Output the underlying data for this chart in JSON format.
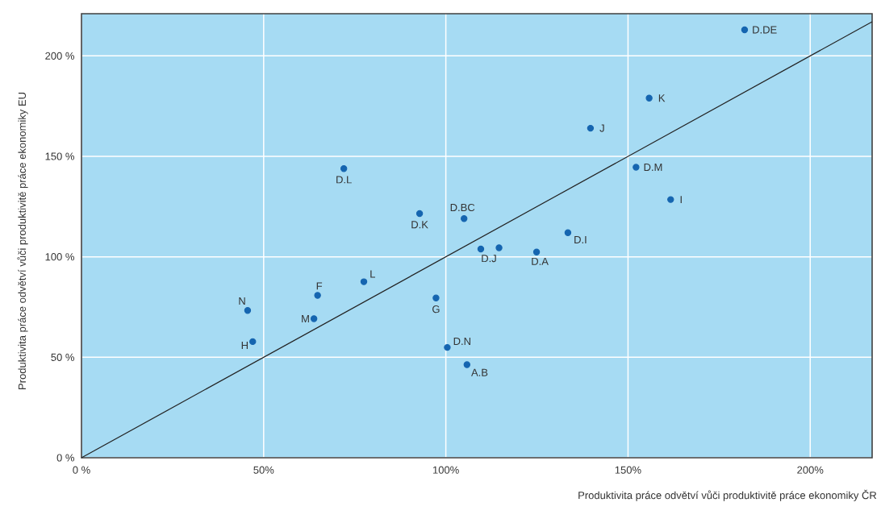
{
  "chart_data": {
    "type": "scatter",
    "xlabel": "Produktivita práce odvětví vůči produktivitě práce ekonomiky ČR",
    "ylabel": "Produktivita práce odvětví vůči produktivitě práce ekonomiky EU",
    "xlim": [
      0,
      217
    ],
    "ylim": [
      0,
      221
    ],
    "xticks": [
      {
        "value": 0,
        "label": "0 %"
      },
      {
        "value": 50,
        "label": "50%"
      },
      {
        "value": 100,
        "label": "100%"
      },
      {
        "value": 150,
        "label": "150%"
      },
      {
        "value": 200,
        "label": "200%"
      }
    ],
    "yticks": [
      {
        "value": 0,
        "label": "0 %"
      },
      {
        "value": 50,
        "label": "50 %"
      },
      {
        "value": 100,
        "label": "100 %"
      },
      {
        "value": 150,
        "label": "150 %"
      },
      {
        "value": 200,
        "label": "200 %"
      }
    ],
    "grid": true,
    "marker": "circle",
    "series": [
      {
        "color": "#1565b0",
        "x": [
          182,
          155.8,
          139.7,
          152.2,
          161.7,
          105,
          133.5,
          109.6,
          114.6,
          124.9,
          72,
          92.8,
          45.6,
          47,
          63.8,
          64.8,
          77.5,
          97.3,
          100.4,
          105.8
        ],
        "values": [
          213,
          179,
          164,
          144.6,
          128.5,
          119,
          112,
          103.9,
          104.5,
          102.4,
          143.9,
          121.5,
          73.3,
          57.8,
          69.2,
          80.8,
          87.6,
          79.5,
          54.9,
          46.3
        ]
      },
      {
        "type": "line",
        "color": "#222222",
        "marker": "none",
        "x": [
          0,
          217
        ],
        "values": [
          0,
          217
        ]
      }
    ],
    "annotations": [
      {
        "text": "D.DE",
        "x": 182,
        "y": 213
      },
      {
        "text": "K",
        "x": 155.8,
        "y": 179
      },
      {
        "text": "J",
        "x": 139.7,
        "y": 164
      },
      {
        "text": "D.M",
        "x": 152.2,
        "y": 144.6
      },
      {
        "text": "I",
        "x": 161.7,
        "y": 128.5
      },
      {
        "text": "D.BC",
        "x": 105,
        "y": 119
      },
      {
        "text": "D.I",
        "x": 133.5,
        "y": 112
      },
      {
        "text": "D.J",
        "x": 109.6,
        "y": 103.9
      },
      {
        "text": "D.A",
        "x": 124.9,
        "y": 102.4
      },
      {
        "text": "D.L",
        "x": 72,
        "y": 143.9
      },
      {
        "text": "D.K",
        "x": 92.8,
        "y": 121.5
      },
      {
        "text": "N",
        "x": 45.6,
        "y": 73.3
      },
      {
        "text": "H",
        "x": 47,
        "y": 57.8
      },
      {
        "text": "M",
        "x": 63.8,
        "y": 69.2
      },
      {
        "text": "F",
        "x": 64.8,
        "y": 80.8
      },
      {
        "text": "L",
        "x": 77.5,
        "y": 87.6
      },
      {
        "text": "G",
        "x": 97.3,
        "y": 79.5
      },
      {
        "text": "D.N",
        "x": 100.4,
        "y": 54.9
      },
      {
        "text": "A.B",
        "x": 105.8,
        "y": 46.3
      }
    ]
  }
}
